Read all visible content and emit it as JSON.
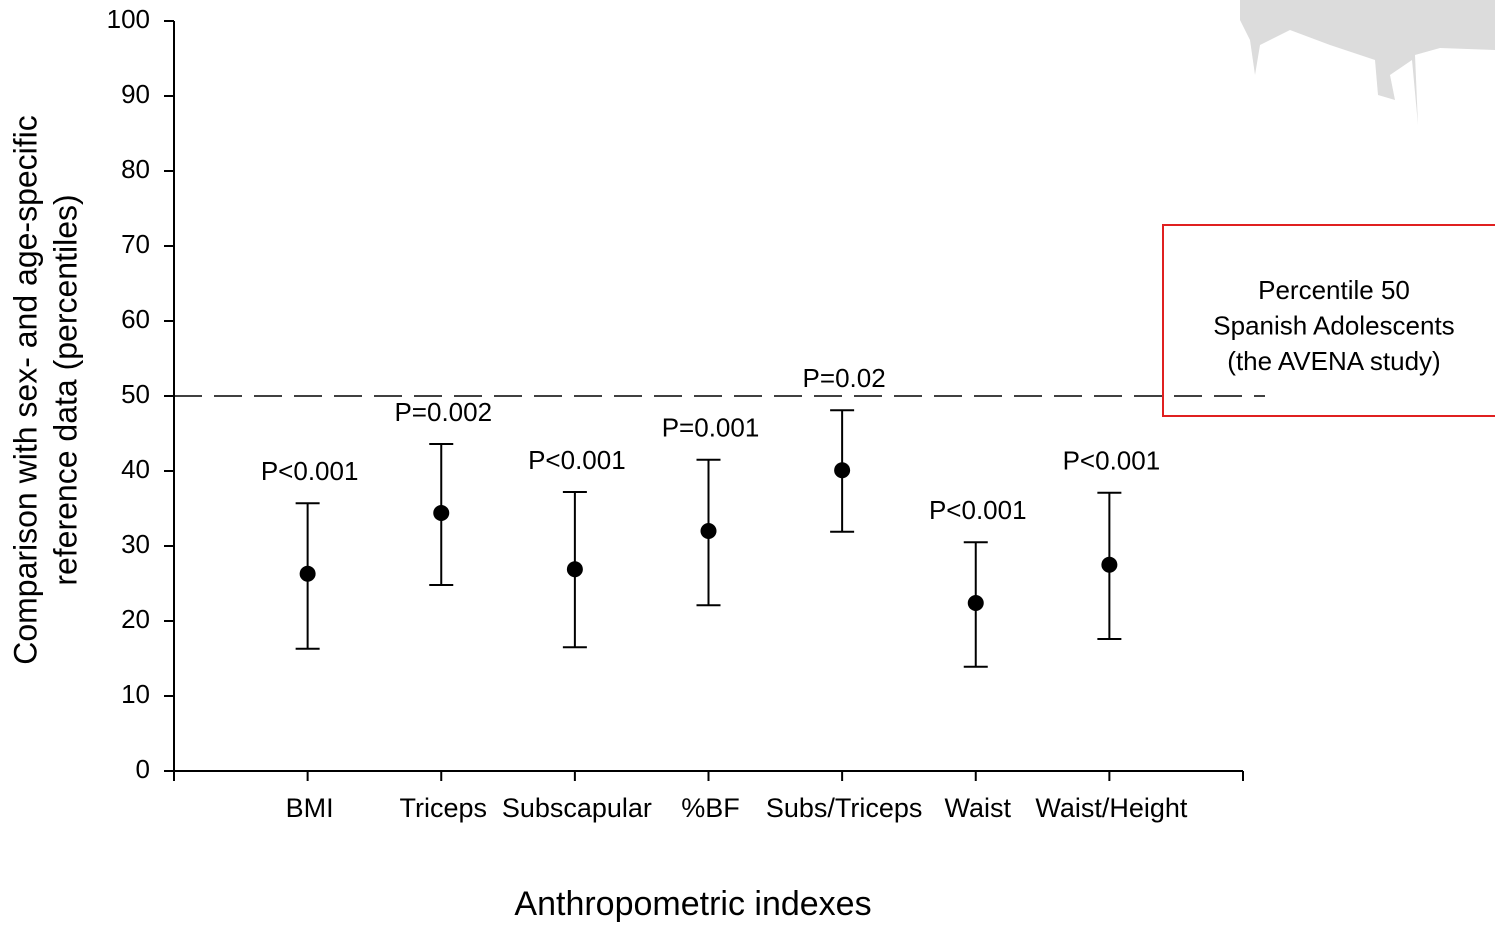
{
  "chart_data": {
    "type": "errorbar",
    "categories": [
      "BMI",
      "Triceps",
      "Subscapular",
      "%BF",
      "Subs/Triceps",
      "Waist",
      "Waist/Height"
    ],
    "values": [
      26.3,
      34.4,
      26.9,
      32.0,
      40.1,
      22.4,
      27.5
    ],
    "lower": [
      16.3,
      24.8,
      16.5,
      22.1,
      31.9,
      13.9,
      17.6
    ],
    "upper": [
      35.7,
      43.6,
      37.2,
      41.5,
      48.1,
      30.5,
      37.1
    ],
    "p_labels": [
      "P<0.001",
      "P=0.002",
      "P<0.001",
      "P=0.001",
      "P=0.02",
      "P<0.001",
      "P<0.001"
    ],
    "color": "#000000",
    "xlabel": "Anthropometric indexes",
    "ylabel": [
      "Comparison with sex- and age-specific",
      "reference data (percentiles)"
    ],
    "ylim": [
      0,
      100
    ],
    "yticks": [
      0,
      10,
      20,
      30,
      40,
      50,
      60,
      70,
      80,
      90,
      100
    ],
    "reference_line": 50,
    "annotation": [
      "Percentile 50",
      "Spanish Adolescents",
      "(the AVENA study)"
    ]
  }
}
